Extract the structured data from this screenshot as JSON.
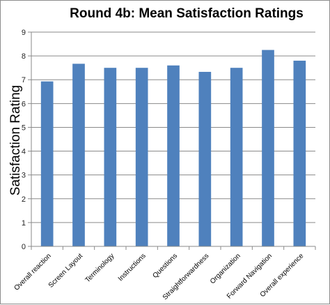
{
  "chart_data": {
    "type": "bar",
    "title": "Round 4b: Mean Satisfaction Ratings",
    "xlabel": "",
    "ylabel": "Satisfaction Rating",
    "ylim": [
      0,
      9
    ],
    "yticks": [
      0,
      1,
      2,
      3,
      4,
      5,
      6,
      7,
      8,
      9
    ],
    "grid": true,
    "legend": "none",
    "bar_color": "#4f81bd",
    "categories": [
      "Overall reaction",
      "Screen Layout",
      "Terminology",
      "Instructions",
      "Questions",
      "Straightforwardness",
      "Organization",
      "Forward Navigation",
      "Overall experience"
    ],
    "values": [
      6.93,
      7.67,
      7.5,
      7.5,
      7.6,
      7.33,
      7.5,
      8.25,
      7.8
    ]
  }
}
